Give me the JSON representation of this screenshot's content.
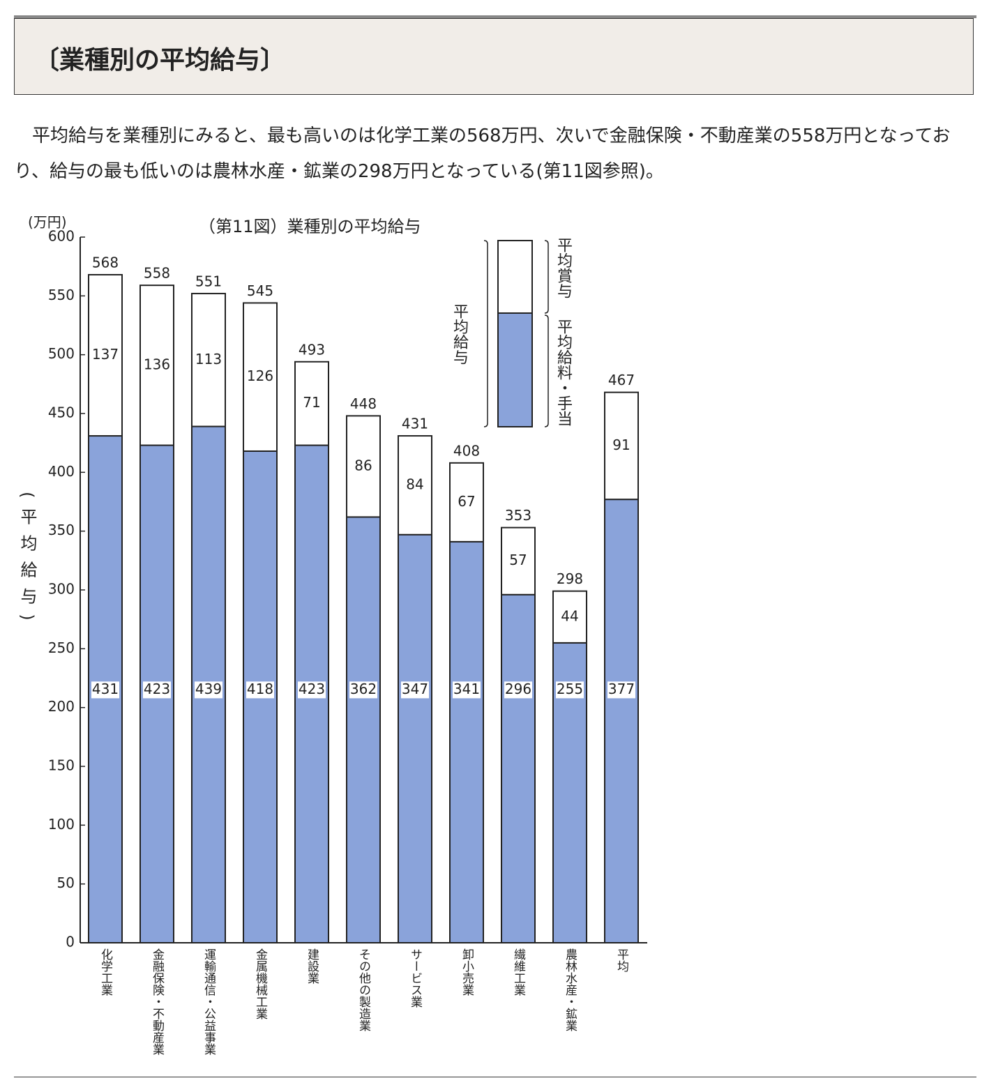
{
  "header": {
    "title": "〔業種別の平均給与〕"
  },
  "paragraph": "平均給与を業種別にみると、最も高いのは化学工業の568万円、次いで金融保険・不動産業の558万円となっており、給与の最も低いのは農林水産・鉱業の298万円となっている(第11図参照)。",
  "chart_data": {
    "type": "stacked_bar",
    "title": "（第11図）業種別の平均給与",
    "unit_label": "(万円)",
    "y_label": "(平均給与)",
    "total_label": "平均給与",
    "categories": [
      "化学工業",
      "金融保険・不動産業",
      "運輸通信・公益事業",
      "金属機械工業",
      "建設業",
      "その他の製造業",
      "サービス業",
      "卸小売業",
      "繊維工業",
      "農林水産・鉱業",
      "平均"
    ],
    "series": [
      {
        "name": "平均給料・手当",
        "color": "#8aa3da",
        "values": [
          431,
          423,
          439,
          418,
          423,
          362,
          347,
          341,
          296,
          255,
          377
        ]
      },
      {
        "name": "平均賞与",
        "color": "#ffffff",
        "values": [
          137,
          136,
          113,
          126,
          71,
          86,
          84,
          67,
          57,
          44,
          91
        ]
      }
    ],
    "totals": [
      568,
      558,
      551,
      545,
      493,
      448,
      431,
      408,
      353,
      298,
      467
    ],
    "ylim": [
      0,
      600
    ],
    "yticks": [
      0,
      50,
      100,
      150,
      200,
      250,
      300,
      350,
      400,
      450,
      500,
      550,
      600
    ],
    "grid": false
  }
}
